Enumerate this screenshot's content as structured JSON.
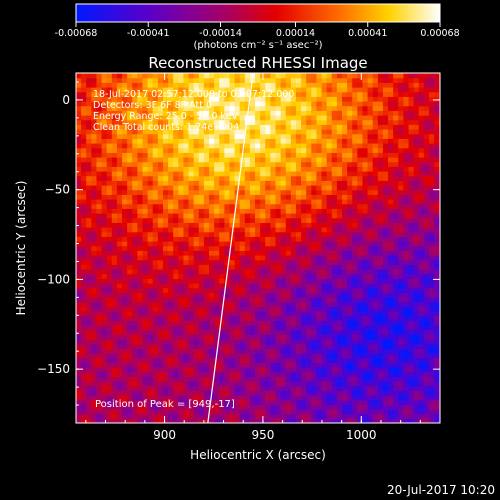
{
  "colorbar": {
    "ticks": [
      "-0.00068",
      "-0.00041",
      "-0.00014",
      "0.00014",
      "0.00041",
      "0.00068"
    ],
    "tick_values": [
      -0.00068,
      -0.00041,
      -0.00014,
      0.00014,
      0.00041,
      0.00068
    ],
    "units_label": "(photons cm⁻² s⁻¹ asec⁻²)",
    "colors": [
      "#0018ff",
      "#5a00c8",
      "#a3006a",
      "#e30000",
      "#ff6a00",
      "#ffd200",
      "#ffffff"
    ]
  },
  "chart_data": {
    "type": "heatmap",
    "title": "Reconstructed RHESSI Image",
    "xlabel": "Heliocentric X (arcsec)",
    "ylabel": "Heliocentric Y (arcsec)",
    "xlim": [
      855,
      1040
    ],
    "ylim": [
      -180,
      15
    ],
    "xticks": [
      "900",
      "950",
      "1000"
    ],
    "xtick_values": [
      900,
      950,
      1000
    ],
    "yticks": [
      "0",
      "−50",
      "−100",
      "−150"
    ],
    "ytick_values": [
      0,
      -50,
      -100,
      -150
    ],
    "annotations": [
      "18-Jul-2017 02:57:12.000 to 03:07:12.000",
      "Detectors: 3F 6F 8F  Att 0",
      "Energy Range: 25.0 - 50.0 keV",
      "Clean     Total counts: 1.24e+004"
    ],
    "peak_label": "Position of Peak = [949,-17]",
    "peak": [
      949,
      -17
    ],
    "limb_line": [
      [
        922,
        -180
      ],
      [
        945,
        15
      ]
    ]
  },
  "timestamp": "20-Jul-2017 10:20"
}
